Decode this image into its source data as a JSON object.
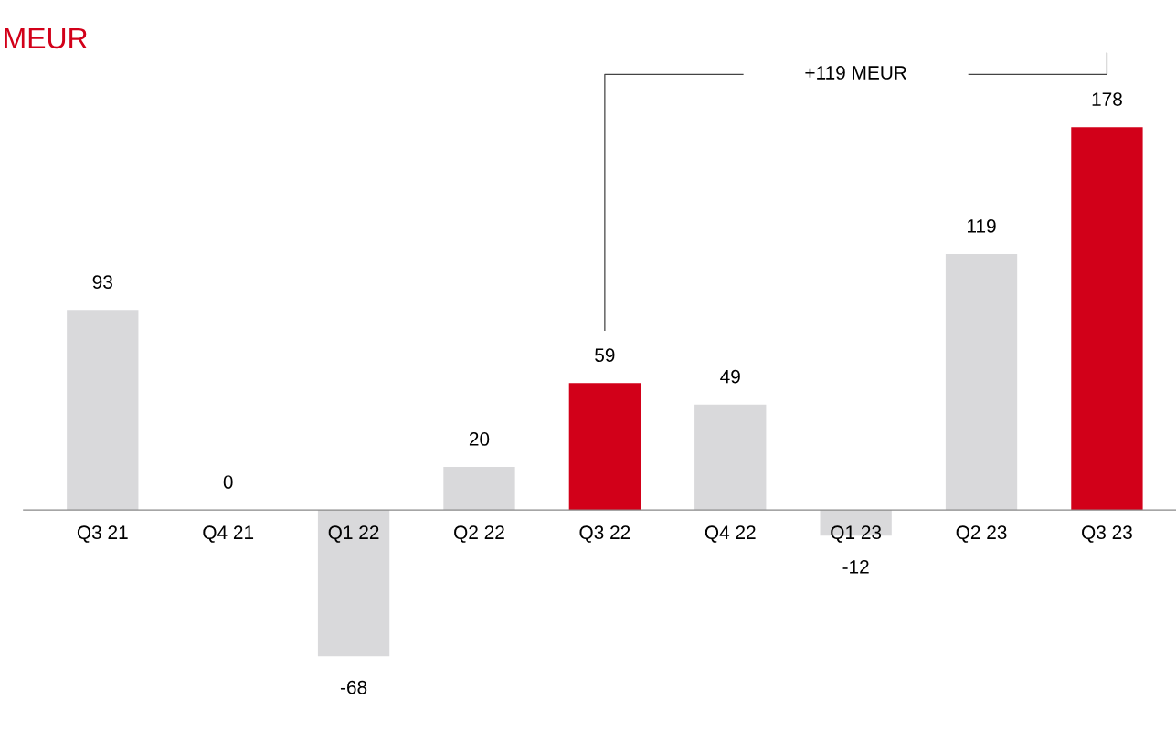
{
  "chart_data": {
    "type": "bar",
    "title": "MEUR",
    "categories": [
      "Q3 21",
      "Q4 21",
      "Q1 22",
      "Q2 22",
      "Q3 22",
      "Q4 22",
      "Q1 23",
      "Q2 23",
      "Q3 23"
    ],
    "values": [
      93,
      0,
      -68,
      20,
      59,
      49,
      -12,
      119,
      178
    ],
    "colors": [
      "#d9d9db",
      "#d9d9db",
      "#d9d9db",
      "#d9d9db",
      "#d20019",
      "#d9d9db",
      "#d9d9db",
      "#d9d9db",
      "#d20019"
    ],
    "data_labels": true,
    "annotations": [
      "+119 MEUR"
    ],
    "grid": false,
    "legend": false
  }
}
